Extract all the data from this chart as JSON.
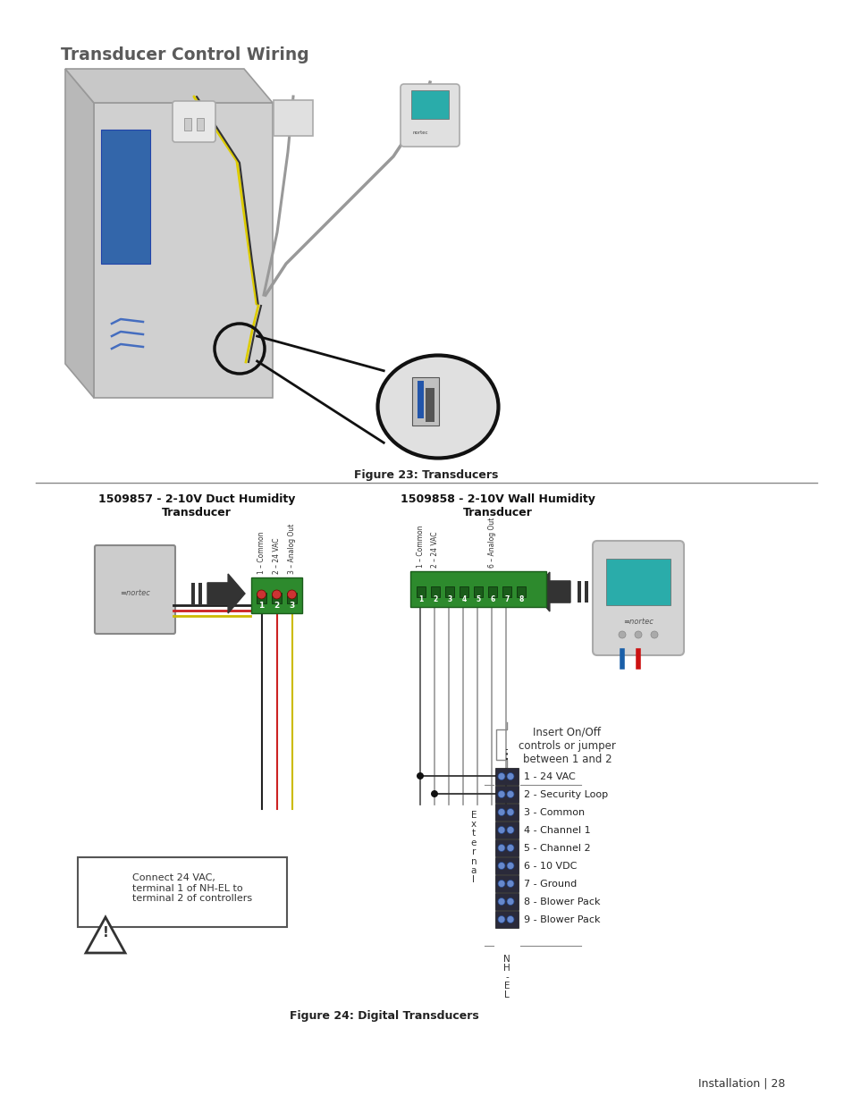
{
  "title": "Transducer Control Wiring",
  "fig23_caption": "Figure 23: Transducers",
  "fig24_caption": "Figure 24: Digital Transducers",
  "footer": "Installation | 28",
  "left_title": "1509857 - 2-10V Duct Humidity\nTransducer",
  "right_title": "1509858 - 2-10V Wall Humidity\nTransducer",
  "left_labels": [
    "1 – Common",
    "2 – 24 VAC",
    "3 – Analog Out"
  ],
  "right_labels": [
    "1 – Common",
    "2 – 24 VAC",
    "6 – Analog Out"
  ],
  "terminal_labels": [
    "1 - 24 VAC",
    "2 - Security Loop",
    "3 - Common",
    "4 - Channel 1",
    "5 - Channel 2",
    "6 - 10 VDC",
    "7 - Ground",
    "8 - Blower Pack",
    "9 - Blower Pack"
  ],
  "warning_text": "Connect 24 VAC,\nterminal 1 of NH-EL to\nterminal 2 of controllers",
  "insert_text": "Insert On/Off\ncontrols or jumper\nbetween 1 and 2",
  "external_label": "E\nx\nt\ne\nr\nn\na\nl",
  "nh_el_label": "N\nH\n-\nE\nL",
  "bg_color": "#ffffff",
  "title_color": "#5a5a5a",
  "caption_color": "#222222",
  "footer_color": "#333333",
  "divider_color": "#888888",
  "green_terminal": "#2d8a2d",
  "dark_green_terminal": "#1a5c1a",
  "arrow_color": "#333333",
  "box_gray": "#cccccc",
  "teal_color": "#2aacaa",
  "blue_color": "#1a5fa8",
  "red_color": "#cc2222",
  "yellow_color": "#ddcc00",
  "black_color": "#111111",
  "nhel_block_color": "#2a2a3a",
  "nhel_dot_color": "#6688cc"
}
